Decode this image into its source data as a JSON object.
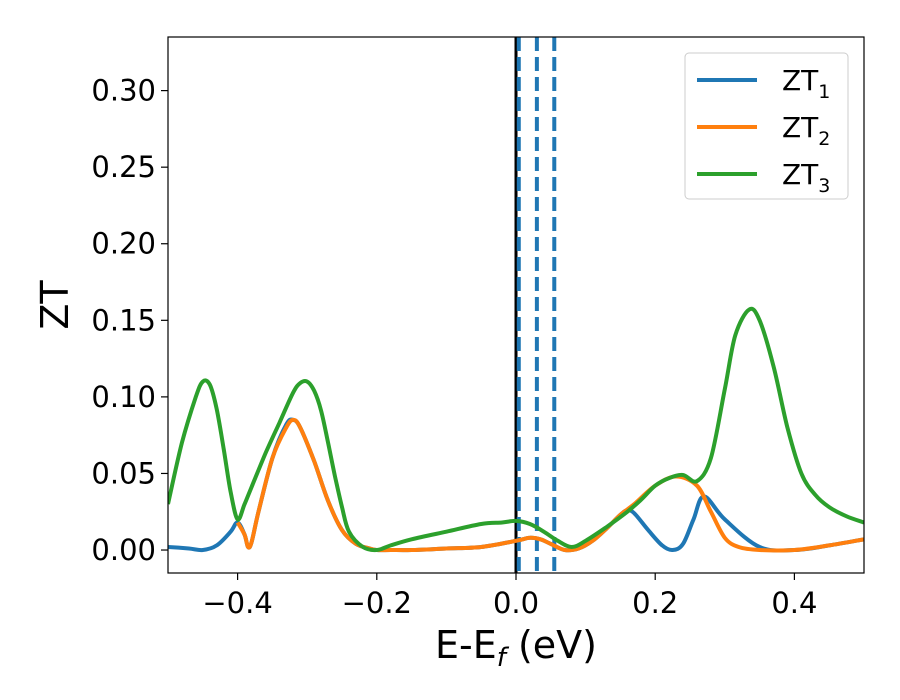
{
  "chart_data": {
    "type": "line",
    "xlabel": "E-E",
    "xlabel_sub": "f",
    "xlabel_unit": " (eV)",
    "ylabel": "ZT",
    "xlim": [
      -0.5,
      0.5
    ],
    "ylim": [
      -0.015,
      0.335
    ],
    "xticks": [
      -0.4,
      -0.2,
      0.0,
      0.2,
      0.4
    ],
    "xtick_labels": [
      "−0.4",
      "−0.2",
      "0.0",
      "0.2",
      "0.4"
    ],
    "yticks": [
      0.0,
      0.05,
      0.1,
      0.15,
      0.2,
      0.25,
      0.3
    ],
    "ytick_labels": [
      "0.00",
      "0.05",
      "0.10",
      "0.15",
      "0.20",
      "0.25",
      "0.30"
    ],
    "grid": false,
    "legend_position": "top-right",
    "series": [
      {
        "name": "ZT",
        "name_sub": "1",
        "color": "#1f77b4",
        "x": [
          -0.5,
          -0.47,
          -0.45,
          -0.43,
          -0.41,
          -0.4,
          -0.39,
          -0.385,
          -0.38,
          -0.37,
          -0.35,
          -0.33,
          -0.32,
          -0.31,
          -0.29,
          -0.27,
          -0.25,
          -0.23,
          -0.21,
          -0.2,
          -0.18,
          -0.15,
          -0.1,
          -0.05,
          0.0,
          0.02,
          0.035,
          0.05,
          0.07,
          0.09,
          0.11,
          0.13,
          0.15,
          0.16,
          0.17,
          0.19,
          0.21,
          0.225,
          0.24,
          0.255,
          0.27,
          0.3,
          0.35,
          0.4,
          0.45,
          0.5
        ],
        "y": [
          0.002,
          0.001,
          0.0,
          0.003,
          0.012,
          0.018,
          0.01,
          0.002,
          0.005,
          0.025,
          0.06,
          0.082,
          0.085,
          0.08,
          0.058,
          0.032,
          0.013,
          0.004,
          0.001,
          0.0,
          0.0,
          0.0,
          0.001,
          0.002,
          0.006,
          0.008,
          0.007,
          0.004,
          0.0,
          0.001,
          0.006,
          0.014,
          0.023,
          0.026,
          0.024,
          0.013,
          0.003,
          0.0,
          0.004,
          0.02,
          0.035,
          0.02,
          0.002,
          0.0,
          0.003,
          0.007
        ]
      },
      {
        "name": "ZT",
        "name_sub": "2",
        "color": "#ff7f0e",
        "x": [
          -0.4,
          -0.39,
          -0.385,
          -0.38,
          -0.37,
          -0.35,
          -0.33,
          -0.32,
          -0.31,
          -0.29,
          -0.27,
          -0.25,
          -0.23,
          -0.21,
          -0.2,
          -0.18,
          -0.15,
          -0.1,
          -0.05,
          0.0,
          0.02,
          0.035,
          0.05,
          0.07,
          0.09,
          0.11,
          0.13,
          0.15,
          0.17,
          0.2,
          0.23,
          0.26,
          0.28,
          0.3,
          0.32,
          0.35,
          0.4,
          0.45,
          0.5
        ],
        "y": [
          0.018,
          0.01,
          0.002,
          0.005,
          0.025,
          0.06,
          0.08,
          0.085,
          0.08,
          0.058,
          0.032,
          0.013,
          0.004,
          0.001,
          0.0,
          0.0,
          0.0,
          0.001,
          0.002,
          0.006,
          0.008,
          0.007,
          0.004,
          0.0,
          0.001,
          0.006,
          0.014,
          0.023,
          0.03,
          0.042,
          0.048,
          0.042,
          0.025,
          0.008,
          0.002,
          0.0,
          0.0,
          0.003,
          0.007
        ]
      },
      {
        "name": "ZT",
        "name_sub": "3",
        "color": "#2ca02c",
        "x": [
          -0.5,
          -0.48,
          -0.46,
          -0.45,
          -0.44,
          -0.43,
          -0.42,
          -0.41,
          -0.4,
          -0.39,
          -0.38,
          -0.36,
          -0.34,
          -0.32,
          -0.31,
          -0.3,
          -0.29,
          -0.28,
          -0.27,
          -0.26,
          -0.25,
          -0.24,
          -0.22,
          -0.2,
          -0.18,
          -0.15,
          -0.1,
          -0.05,
          -0.02,
          0.0,
          0.02,
          0.04,
          0.06,
          0.08,
          0.1,
          0.13,
          0.16,
          0.18,
          0.2,
          0.22,
          0.24,
          0.26,
          0.28,
          0.3,
          0.315,
          0.335,
          0.35,
          0.37,
          0.39,
          0.41,
          0.43,
          0.45,
          0.475,
          0.5
        ],
        "y": [
          0.03,
          0.07,
          0.1,
          0.11,
          0.108,
          0.092,
          0.066,
          0.038,
          0.02,
          0.03,
          0.041,
          0.063,
          0.083,
          0.103,
          0.109,
          0.11,
          0.104,
          0.091,
          0.07,
          0.048,
          0.028,
          0.012,
          0.002,
          0.0,
          0.003,
          0.007,
          0.012,
          0.017,
          0.018,
          0.019,
          0.017,
          0.012,
          0.006,
          0.002,
          0.006,
          0.015,
          0.025,
          0.033,
          0.042,
          0.047,
          0.049,
          0.045,
          0.06,
          0.105,
          0.14,
          0.157,
          0.15,
          0.12,
          0.08,
          0.05,
          0.036,
          0.028,
          0.022,
          0.018
        ]
      }
    ],
    "vertical_lines": [
      {
        "x": 0.0,
        "color": "#000000",
        "style": "solid"
      },
      {
        "x": 0.004,
        "color": "#1f77b4",
        "style": "dashed"
      },
      {
        "x": 0.03,
        "color": "#1f77b4",
        "style": "dashed"
      },
      {
        "x": 0.055,
        "color": "#1f77b4",
        "style": "dashed"
      }
    ]
  }
}
